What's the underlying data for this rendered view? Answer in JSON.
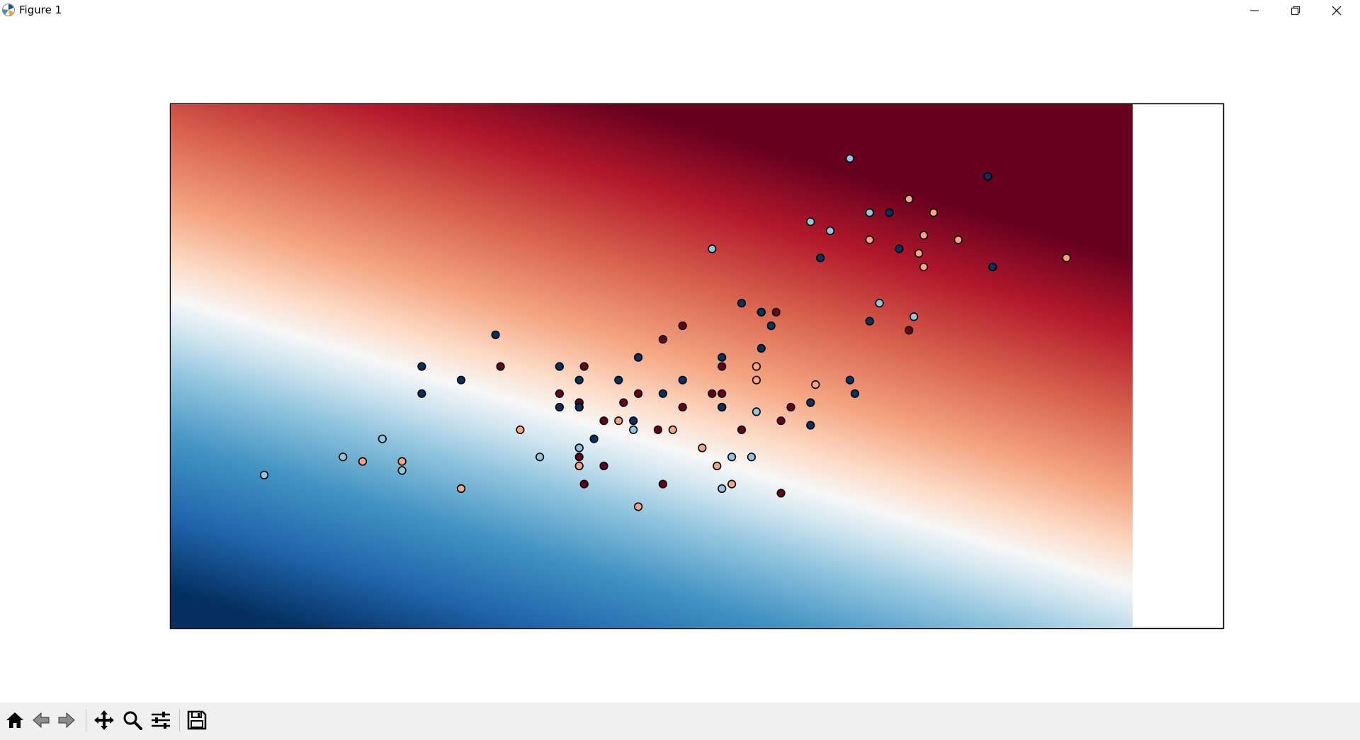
{
  "window": {
    "title": "Figure 1",
    "controls": [
      "minimize-icon",
      "restore-icon",
      "close-icon"
    ]
  },
  "toolbar": {
    "buttons": [
      "home-icon",
      "back-arrow-icon",
      "forward-arrow-icon",
      "pan-icon",
      "zoom-icon",
      "configure-subplots-icon",
      "save-icon"
    ]
  },
  "chart_data": {
    "type": "scatter",
    "title": "",
    "xlabel": "",
    "ylabel": "",
    "axes_visible": false,
    "grid": false,
    "xlim": [
      0,
      10.7
    ],
    "ylim": [
      0,
      5.8
    ],
    "background": {
      "type": "heatmap",
      "colormap": "RdBu_r",
      "x_extent": [
        0,
        9.75
      ],
      "description_colors": [
        "#053061",
        "#2166ac",
        "#4393c3",
        "#92c5de",
        "#f7f7f7",
        "#f4a582",
        "#d6604d",
        "#b2182b",
        "#67001f"
      ]
    },
    "series": [
      {
        "color": "#67001f",
        "x": [
          5.2,
          3.35,
          4.2,
          4.75,
          4.15,
          4.2,
          4.4,
          5.0,
          5.2,
          5.8,
          6.2,
          5.0,
          6.2,
          4.15,
          4.95,
          5.6,
          4.6,
          4.15,
          4.15,
          3.95,
          4.4,
          6.3,
          5.5,
          5.6,
          7.5,
          6.15,
          6.0,
          5.6
        ],
        "y": [
          3.35,
          2.9,
          2.9,
          2.6,
          2.0,
          1.6,
          1.8,
          1.6,
          2.45,
          2.2,
          2.3,
          3.2,
          1.5,
          2.5,
          2.2,
          2.6,
          2.5,
          1.9,
          2.5,
          2.6,
          2.3,
          2.45,
          2.6,
          2.9,
          3.3,
          3.5,
          3.5,
          2.45
        ]
      },
      {
        "color": "#053061",
        "x": [
          3.3,
          2.55,
          2.95,
          2.55,
          4.7,
          3.95,
          4.15,
          3.95,
          4.15,
          4.55,
          4.15,
          4.75,
          5.2,
          5.0,
          5.6,
          5.6,
          6.0,
          5.8,
          6.1,
          6.5,
          6.5,
          6.9,
          7.1,
          7.3,
          8.3,
          8.35,
          6.95,
          6.0,
          6.6,
          7.4,
          4.3
        ],
        "y": [
          3.25,
          2.9,
          2.75,
          2.6,
          2.3,
          2.45,
          2.75,
          2.9,
          2.45,
          2.75,
          2.45,
          3.0,
          2.75,
          2.6,
          2.45,
          3.0,
          3.5,
          3.6,
          3.35,
          2.25,
          2.5,
          2.75,
          3.4,
          4.6,
          5.0,
          4.0,
          2.6,
          3.1,
          4.1,
          4.2,
          2.1
        ]
      },
      {
        "color": "#92c5de",
        "x": [
          0.95,
          1.75,
          2.15,
          2.35,
          3.75,
          4.15,
          4.7,
          5.6,
          5.7,
          5.9,
          5.95,
          6.9,
          6.5,
          7.1,
          6.7,
          7.55,
          7.2,
          5.5
        ],
        "y": [
          1.7,
          1.9,
          2.1,
          1.75,
          1.9,
          2.0,
          2.2,
          1.55,
          1.9,
          1.9,
          2.4,
          5.2,
          4.5,
          4.6,
          4.4,
          3.45,
          3.6,
          4.2
        ]
      },
      {
        "color": "#f4a582",
        "x": [
          1.95,
          2.35,
          2.95,
          3.55,
          4.75,
          4.55,
          4.15,
          5.1,
          5.4,
          5.55,
          5.7,
          6.55,
          7.1,
          7.5,
          8.0,
          7.6,
          7.75,
          7.65,
          7.65,
          9.1,
          5.95,
          5.95
        ],
        "y": [
          1.85,
          1.85,
          1.55,
          2.2,
          1.35,
          2.3,
          1.8,
          2.2,
          2.0,
          1.8,
          1.6,
          2.7,
          4.3,
          4.75,
          4.3,
          4.15,
          4.6,
          4.35,
          4.0,
          4.1,
          2.75,
          2.9
        ]
      }
    ]
  }
}
